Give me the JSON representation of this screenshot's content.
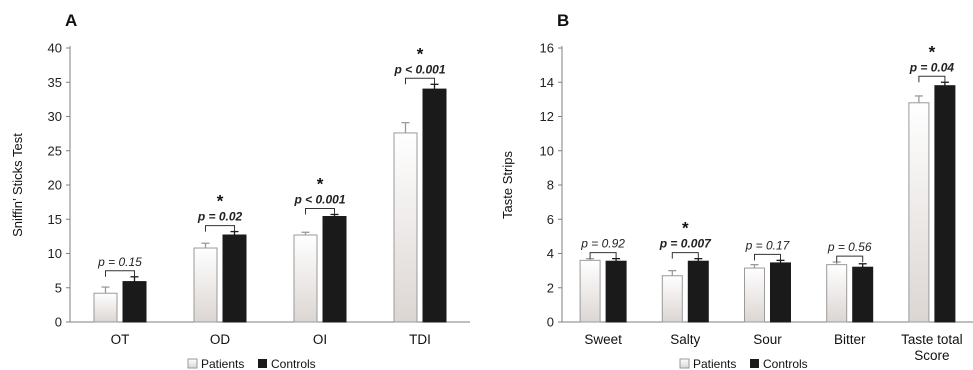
{
  "legend": {
    "patients": "Patients",
    "controls": "Controls"
  },
  "colors": {
    "patients_fill_top": "#ffffff",
    "patients_fill_bottom": "#dcd6d3",
    "patients_stroke": "#9a9a9a",
    "controls_fill": "#1a1a1a",
    "axis": "#7f7f7f"
  },
  "chart_data": [
    {
      "panel": "A",
      "type": "bar",
      "ylabel": "Sniffin’ Sticks Test",
      "ylim": [
        0,
        40
      ],
      "yticks": [
        0,
        5,
        10,
        15,
        20,
        25,
        30,
        35,
        40
      ],
      "categories": [
        "OT",
        "OD",
        "OI",
        "TDI"
      ],
      "series": [
        {
          "name": "Patients",
          "values": [
            4.2,
            10.8,
            12.7,
            27.6
          ],
          "errors": [
            0.9,
            0.7,
            0.4,
            1.5
          ]
        },
        {
          "name": "Controls",
          "values": [
            5.9,
            12.7,
            15.4,
            34.0
          ],
          "errors": [
            0.7,
            0.5,
            0.3,
            0.7
          ]
        }
      ],
      "annotations": [
        {
          "category": "OT",
          "p": "p = 0.15",
          "significant": false
        },
        {
          "category": "OD",
          "p": "p = 0.02",
          "significant": true
        },
        {
          "category": "OI",
          "p": "p < 0.001",
          "significant": true
        },
        {
          "category": "TDI",
          "p": "p < 0.001",
          "significant": true
        }
      ],
      "star": "*",
      "legend_position": "bottom-center",
      "grid": false
    },
    {
      "panel": "B",
      "type": "bar",
      "ylabel": "Taste Strips",
      "ylim": [
        0,
        16
      ],
      "yticks": [
        0,
        2,
        4,
        6,
        8,
        10,
        12,
        14,
        16
      ],
      "categories": [
        "Sweet",
        "Salty",
        "Sour",
        "Bitter",
        "Taste total Score"
      ],
      "series": [
        {
          "name": "Patients",
          "values": [
            3.6,
            2.7,
            3.15,
            3.35,
            12.8
          ],
          "errors": [
            0.1,
            0.3,
            0.2,
            0.15,
            0.4
          ]
        },
        {
          "name": "Controls",
          "values": [
            3.55,
            3.55,
            3.45,
            3.2,
            13.8
          ],
          "errors": [
            0.15,
            0.15,
            0.15,
            0.2,
            0.2
          ]
        }
      ],
      "annotations": [
        {
          "category": "Sweet",
          "p": "p = 0.92",
          "significant": false
        },
        {
          "category": "Salty",
          "p": "p = 0.007",
          "significant": true
        },
        {
          "category": "Sour",
          "p": "p = 0.17",
          "significant": false
        },
        {
          "category": "Bitter",
          "p": "p = 0.56",
          "significant": false
        },
        {
          "category": "Taste total Score",
          "p": "p = 0.04",
          "significant": true
        }
      ],
      "star": "*",
      "legend_position": "bottom-center",
      "grid": false
    }
  ]
}
